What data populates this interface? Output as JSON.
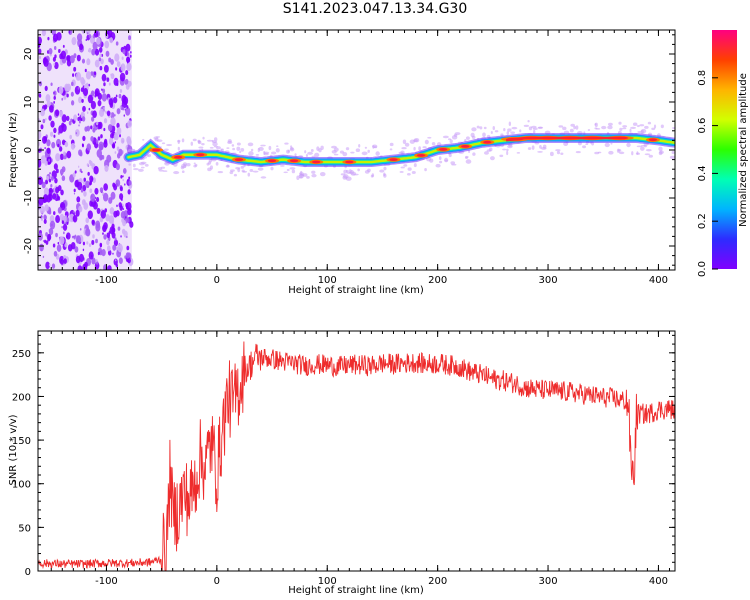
{
  "title": "S141.2023.047.13.34.G30",
  "colors": {
    "snr_line": "#ee2c2c",
    "noise_purple": "#7f00ff",
    "colorbar": [
      "#8000ff",
      "#2d2cff",
      "#00b4ff",
      "#00ffb4",
      "#2cff00",
      "#d2ff00",
      "#ffb400",
      "#ff4000",
      "#ff0080"
    ]
  },
  "chart_data": [
    {
      "type": "heatmap",
      "title": "",
      "xlabel": "Height of straight line (km)",
      "ylabel": "Frequency (Hz)",
      "xlim": [
        -162,
        415
      ],
      "ylim": [
        -25,
        25
      ],
      "xticks": [
        -100,
        0,
        100,
        200,
        300,
        400
      ],
      "xtick_labels": [
        "-100",
        "0",
        "100",
        "200",
        "300",
        "400"
      ],
      "yticks": [
        -20,
        -10,
        0,
        10,
        20
      ],
      "ytick_labels": [
        "-20",
        "-10",
        "0",
        "10",
        "20"
      ],
      "noise_region_x": [
        -162,
        -77
      ],
      "ridge": {
        "x": [
          -80,
          -70,
          -60,
          -50,
          -40,
          -30,
          -20,
          -10,
          0,
          20,
          40,
          60,
          80,
          100,
          120,
          140,
          160,
          180,
          200,
          220,
          240,
          260,
          280,
          300,
          320,
          340,
          360,
          380,
          400,
          415
        ],
        "freq": [
          -1.5,
          -1,
          1,
          -1,
          -2,
          -1,
          -1,
          -1,
          -1,
          -2,
          -2.5,
          -2,
          -2.5,
          -2.5,
          -2.5,
          -2.5,
          -2,
          -1.5,
          0,
          0.5,
          1.5,
          2,
          2.5,
          2.5,
          2.5,
          2.5,
          2.5,
          2.5,
          2,
          1.5
        ]
      },
      "colorbar": {
        "label": "Normalized spectral amplitude",
        "ticks": [
          0.0,
          0.2,
          0.4,
          0.6,
          0.8
        ],
        "tick_labels": [
          "0.0",
          "0.2",
          "0.4",
          "0.6",
          "0.8"
        ],
        "range": [
          0,
          1
        ]
      }
    },
    {
      "type": "line",
      "title": "",
      "xlabel": "Height of straight line (km)",
      "ylabel": "SNR (10 * v/v)",
      "xlim": [
        -162,
        415
      ],
      "ylim": [
        0,
        275
      ],
      "xticks": [
        -100,
        0,
        100,
        200,
        300,
        400
      ],
      "xtick_labels": [
        "-100",
        "0",
        "100",
        "200",
        "300",
        "400"
      ],
      "yticks": [
        0,
        50,
        100,
        150,
        200,
        250
      ],
      "ytick_labels": [
        "0",
        "50",
        "100",
        "150",
        "200",
        "250"
      ],
      "series": [
        {
          "x": [
            -162,
            -140,
            -120,
            -100,
            -80,
            -60,
            -50,
            -45,
            -42,
            -40,
            -35,
            -30,
            -25,
            -20,
            -15,
            -10,
            -5,
            0,
            5,
            10,
            15,
            20,
            25,
            30,
            35,
            40,
            50,
            60,
            70,
            80,
            90,
            100,
            110,
            120,
            130,
            140,
            150,
            160,
            170,
            180,
            190,
            200,
            210,
            220,
            230,
            240,
            250,
            260,
            270,
            280,
            290,
            300,
            310,
            320,
            330,
            340,
            350,
            360,
            365,
            370,
            373,
            375,
            378,
            380,
            385,
            390,
            395,
            400,
            405,
            410,
            415
          ],
          "y": [
            9,
            8,
            8,
            9,
            9,
            10,
            14,
            40,
            120,
            60,
            70,
            90,
            80,
            100,
            130,
            120,
            150,
            110,
            160,
            200,
            190,
            210,
            230,
            235,
            245,
            245,
            243,
            240,
            238,
            235,
            237,
            236,
            234,
            236,
            236,
            235,
            238,
            237,
            238,
            239,
            237,
            238,
            236,
            234,
            228,
            225,
            220,
            218,
            215,
            210,
            208,
            207,
            206,
            205,
            203,
            201,
            199,
            198,
            196,
            195,
            190,
            120,
            110,
            180,
            180,
            180,
            182,
            185,
            185,
            186,
            184
          ]
        }
      ]
    }
  ]
}
